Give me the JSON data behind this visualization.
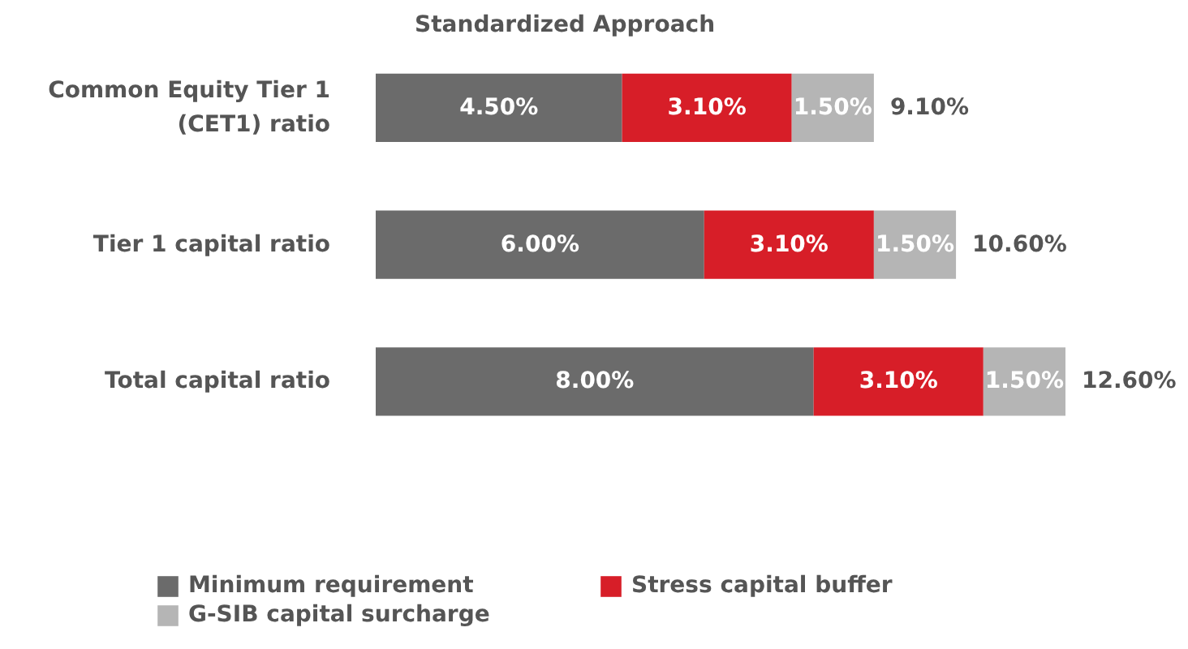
{
  "chart_data": {
    "type": "bar",
    "orientation": "horizontal",
    "stacked": true,
    "title": "Standardized Approach",
    "categories": [
      "Common Equity Tier 1 (CET1) ratio",
      "Tier 1 capital ratio",
      "Total capital ratio"
    ],
    "series": [
      {
        "name": "Minimum requirement",
        "color": "#6b6b6b",
        "values": [
          4.5,
          6.0,
          8.0
        ],
        "value_labels": [
          "4.50%",
          "6.00%",
          "8.00%"
        ]
      },
      {
        "name": "Stress capital buffer",
        "color": "#d71e28",
        "values": [
          3.1,
          3.1,
          3.1
        ],
        "value_labels": [
          "3.10%",
          "3.10%",
          "3.10%"
        ]
      },
      {
        "name": "G-SIB capital surcharge",
        "color": "#b5b5b5",
        "values": [
          1.5,
          1.5,
          1.5
        ],
        "value_labels": [
          "1.50%",
          "1.50%",
          "1.50%"
        ]
      }
    ],
    "totals": [
      "9.10%",
      "10.60%",
      "12.60%"
    ],
    "legend": "bottom",
    "grid": false
  }
}
